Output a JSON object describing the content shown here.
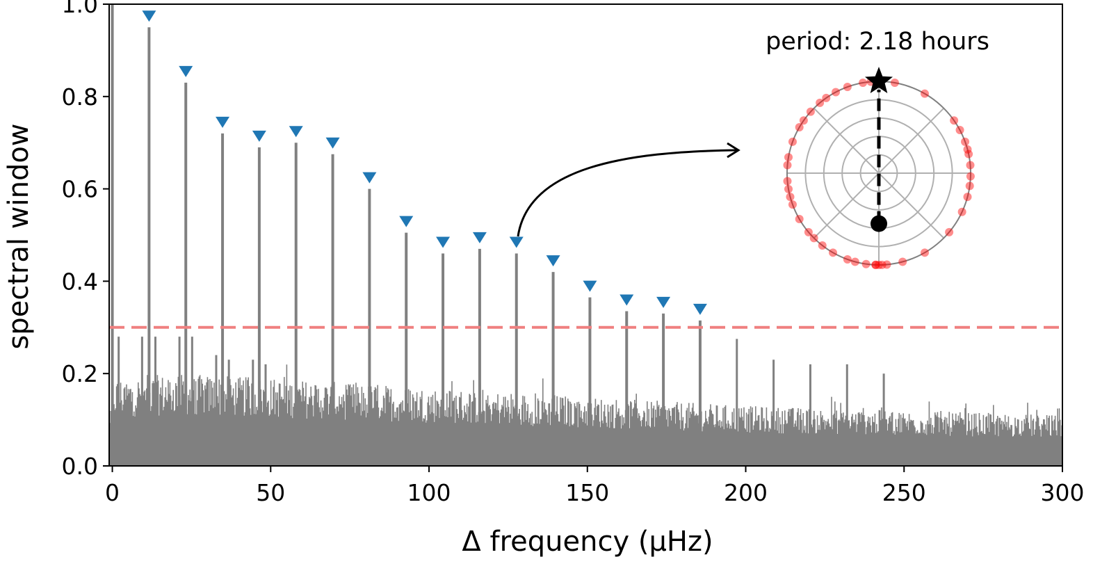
{
  "chart_data": {
    "type": "bar",
    "xlabel": "Δ frequency (μHz)",
    "ylabel": "spectral window",
    "xlim": [
      -1,
      300
    ],
    "ylim": [
      0,
      1.0
    ],
    "x_ticks": [
      0,
      50,
      100,
      150,
      200,
      250,
      300
    ],
    "y_ticks": [
      0.0,
      0.2,
      0.4,
      0.6,
      0.8,
      1.0
    ],
    "x_tick_labels": [
      "0",
      "50",
      "100",
      "150",
      "200",
      "250",
      "300"
    ],
    "y_tick_labels": [
      "0.0",
      "0.2",
      "0.4",
      "0.6",
      "0.8",
      "1.0"
    ],
    "threshold": {
      "y": 0.3,
      "color": "#f08080",
      "style": "dashed"
    },
    "bar_color": "#808080",
    "marker_color": "#1f77b4",
    "main_peaks": {
      "x": [
        0,
        11.6,
        23.2,
        34.8,
        46.4,
        58.0,
        69.6,
        81.2,
        92.8,
        104.4,
        116.0,
        127.6,
        139.2,
        150.8,
        162.4,
        174.0,
        185.6
      ],
      "y": [
        1.0,
        0.95,
        0.83,
        0.72,
        0.69,
        0.7,
        0.675,
        0.6,
        0.505,
        0.46,
        0.47,
        0.46,
        0.42,
        0.365,
        0.335,
        0.33,
        0.315
      ],
      "marked": [
        false,
        true,
        true,
        true,
        true,
        true,
        true,
        true,
        true,
        true,
        true,
        true,
        true,
        true,
        true,
        true,
        true
      ]
    },
    "secondary_peaks": {
      "x": [
        2,
        9.4,
        13.6,
        21.2,
        25.2,
        32.8,
        36.8,
        44.4,
        48.4,
        197.2,
        208.8,
        220.4,
        232.0,
        243.6
      ],
      "y": [
        0.28,
        0.28,
        0.28,
        0.28,
        0.28,
        0.24,
        0.23,
        0.23,
        0.22,
        0.275,
        0.23,
        0.22,
        0.22,
        0.2
      ]
    },
    "noise_envelope": {
      "x": [
        0,
        20,
        50,
        100,
        150,
        200,
        250,
        300
      ],
      "y": [
        0.19,
        0.2,
        0.19,
        0.17,
        0.15,
        0.13,
        0.12,
        0.11
      ]
    },
    "inset": {
      "label": "period: 2.18 hours",
      "type": "polar",
      "phase_points_color": "#ff0000",
      "phase_angles_deg": [
        5,
        12,
        20,
        28,
        35,
        60,
        80,
        95,
        100,
        110,
        118,
        125,
        130,
        138,
        145,
        150,
        160,
        175,
        185,
        190,
        195,
        200,
        210,
        220,
        225,
        232,
        240,
        250,
        255,
        262,
        268,
        275,
        285,
        300,
        320,
        335,
        345,
        352,
        358,
        270,
        268,
        272,
        15,
        170
      ],
      "star_direction_deg": 90,
      "vector_end_fraction": -0.55
    }
  }
}
